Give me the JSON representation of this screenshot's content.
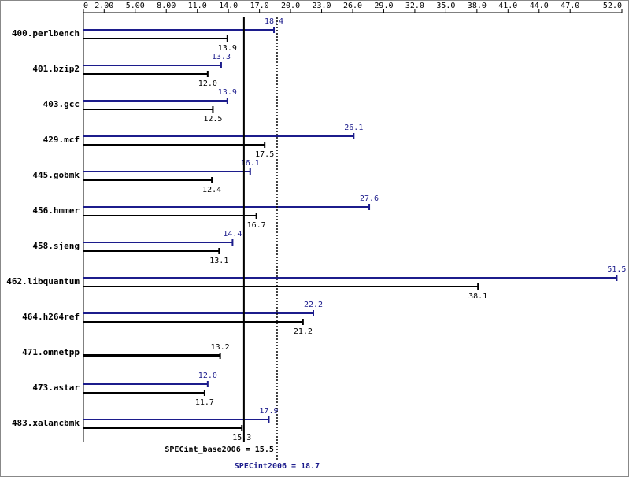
{
  "chart_data": {
    "type": "bar",
    "orientation": "horizontal",
    "categories": [
      "400.perlbench",
      "401.bzip2",
      "403.gcc",
      "429.mcf",
      "445.gobmk",
      "456.hmmer",
      "458.sjeng",
      "462.libquantum",
      "464.h264ref",
      "471.omnetpp",
      "473.astar",
      "483.xalancbmk"
    ],
    "series": [
      {
        "color": "#1c1c8c",
        "values": [
          18.4,
          13.3,
          13.9,
          26.1,
          16.1,
          27.6,
          14.4,
          51.5,
          22.2,
          null,
          12.0,
          17.9
        ],
        "value_labels": [
          "18.4",
          "13.3",
          "13.9",
          "26.1",
          "16.1",
          "27.6",
          "14.4",
          "51.5",
          "22.2",
          null,
          "12.0",
          "17.9"
        ]
      },
      {
        "color": "#000000",
        "values": [
          13.9,
          12.0,
          12.5,
          17.5,
          12.4,
          16.7,
          13.1,
          38.1,
          21.2,
          13.2,
          11.7,
          15.3
        ],
        "value_labels": [
          "13.9",
          "12.0",
          "12.5",
          "17.5",
          "12.4",
          "16.7",
          "13.1",
          "38.1",
          "21.2",
          "13.2",
          "11.7",
          "15.3"
        ]
      }
    ],
    "xlim": [
      0,
      52
    ],
    "xticks": [
      0,
      {
        "value": 2,
        "label": "2.00"
      },
      {
        "value": 5,
        "label": "5.00"
      },
      {
        "value": 8,
        "label": "8.00"
      },
      {
        "value": 11,
        "label": "11.0"
      },
      {
        "value": 14,
        "label": "14.0"
      },
      {
        "value": 17,
        "label": "17.0"
      },
      {
        "value": 20,
        "label": "20.0"
      },
      {
        "value": 23,
        "label": "23.0"
      },
      {
        "value": 26,
        "label": "26.0"
      },
      {
        "value": 29,
        "label": "29.0"
      },
      {
        "value": 32,
        "label": "32.0"
      },
      {
        "value": 35,
        "label": "35.0"
      },
      {
        "value": 38,
        "label": "38.0"
      },
      {
        "value": 41,
        "label": "41.0"
      },
      {
        "value": 44,
        "label": "44.0"
      },
      {
        "value": 47,
        "label": "47.0"
      },
      {
        "value": 52,
        "label": "52.0"
      }
    ],
    "summary": [
      {
        "label": "SPECint_base2006 = 15.5",
        "value": 15.5,
        "color": "#000000"
      },
      {
        "label": "SPECint2006 = 18.7",
        "value": 18.7,
        "color": "#1c1c8c"
      }
    ]
  }
}
